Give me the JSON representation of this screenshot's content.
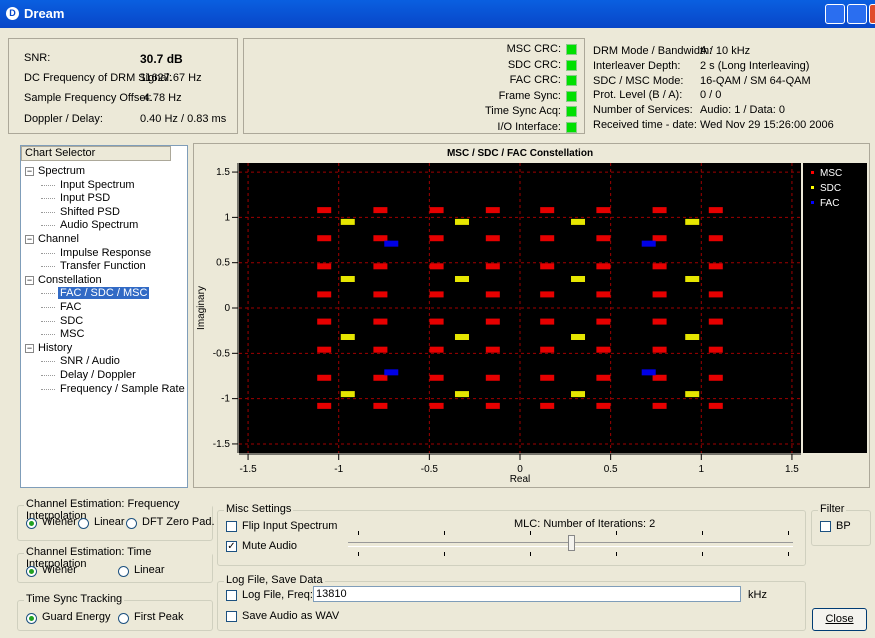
{
  "window": {
    "title": "Dream"
  },
  "status": {
    "rows": [
      {
        "label": "SNR:",
        "value": "30.7 dB"
      },
      {
        "label": "DC Frequency of DRM Signal:",
        "value": "11627.67 Hz"
      },
      {
        "label": "Sample Frequency Offset:",
        "value": "-4.78 Hz"
      },
      {
        "label": "Doppler / Delay:",
        "value": "0.40 Hz / 0.83 ms"
      }
    ],
    "indicators": [
      "MSC CRC:",
      "SDC CRC:",
      "FAC CRC:",
      "Frame Sync:",
      "Time Sync Acq:",
      "I/O Interface:"
    ],
    "info": [
      {
        "label": "DRM Mode / Bandwidth:",
        "value": "A / 10 kHz"
      },
      {
        "label": "Interleaver Depth:",
        "value": "2 s (Long Interleaving)"
      },
      {
        "label": "SDC / MSC Mode:",
        "value": "16-QAM / SM 64-QAM"
      },
      {
        "label": "Prot. Level (B / A):",
        "value": "0 / 0"
      },
      {
        "label": "Number of Services:",
        "value": "Audio: 1 / Data: 0"
      },
      {
        "label": "Received time - date:",
        "value": "Wed Nov 29 15:26:00 2006"
      }
    ]
  },
  "chart_selector": {
    "header": "Chart Selector",
    "groups": [
      {
        "label": "Spectrum",
        "items": [
          "Input Spectrum",
          "Input PSD",
          "Shifted PSD",
          "Audio Spectrum"
        ]
      },
      {
        "label": "Channel",
        "items": [
          "Impulse Response",
          "Transfer Function"
        ]
      },
      {
        "label": "Constellation",
        "items": [
          "FAC / SDC / MSC",
          "FAC",
          "SDC",
          "MSC"
        ]
      },
      {
        "label": "History",
        "items": [
          "SNR / Audio",
          "Delay / Doppler",
          "Frequency / Sample Rate"
        ]
      }
    ],
    "selected": [
      2,
      0
    ]
  },
  "chart_data": {
    "type": "scatter",
    "title": "MSC / SDC / FAC Constellation",
    "x_label": "Real",
    "y_label": "Imaginary",
    "xlim": [
      -1.55,
      1.55
    ],
    "ylim": [
      -1.6,
      1.6
    ],
    "xticks": [
      -1.5,
      -1,
      -0.5,
      0,
      0.5,
      1,
      1.5
    ],
    "yticks": [
      1.5,
      1,
      0.5,
      0,
      -0.5,
      -1,
      -1.5
    ],
    "grid": true,
    "series": [
      {
        "name": "MSC",
        "color": "#ff0000",
        "x": [
          -1.08,
          -0.77,
          -0.46,
          -0.15,
          0.15,
          0.46,
          0.77,
          1.08,
          -1.08,
          -0.77,
          -0.46,
          -0.15,
          0.15,
          0.46,
          0.77,
          1.08,
          -1.08,
          -0.77,
          -0.46,
          -0.15,
          0.15,
          0.46,
          0.77,
          1.08,
          -1.08,
          -0.77,
          -0.46,
          -0.15,
          0.15,
          0.46,
          0.77,
          1.08,
          -1.08,
          -0.77,
          -0.46,
          -0.15,
          0.15,
          0.46,
          0.77,
          1.08,
          -1.08,
          -0.77,
          -0.46,
          -0.15,
          0.15,
          0.46,
          0.77,
          1.08,
          -1.08,
          -0.77,
          -0.46,
          -0.15,
          0.15,
          0.46,
          0.77,
          1.08,
          -1.08,
          -0.77,
          -0.46,
          -0.15,
          0.15,
          0.46,
          0.77,
          1.08
        ],
        "y": [
          1.08,
          1.08,
          1.08,
          1.08,
          1.08,
          1.08,
          1.08,
          1.08,
          0.77,
          0.77,
          0.77,
          0.77,
          0.77,
          0.77,
          0.77,
          0.77,
          0.46,
          0.46,
          0.46,
          0.46,
          0.46,
          0.46,
          0.46,
          0.46,
          0.15,
          0.15,
          0.15,
          0.15,
          0.15,
          0.15,
          0.15,
          0.15,
          -0.15,
          -0.15,
          -0.15,
          -0.15,
          -0.15,
          -0.15,
          -0.15,
          -0.15,
          -0.46,
          -0.46,
          -0.46,
          -0.46,
          -0.46,
          -0.46,
          -0.46,
          -0.46,
          -0.77,
          -0.77,
          -0.77,
          -0.77,
          -0.77,
          -0.77,
          -0.77,
          -0.77,
          -1.08,
          -1.08,
          -1.08,
          -1.08,
          -1.08,
          -1.08,
          -1.08,
          -1.08
        ]
      },
      {
        "name": "SDC",
        "color": "#ffff00",
        "x": [
          -0.95,
          -0.32,
          0.32,
          0.95,
          -0.95,
          -0.32,
          0.32,
          0.95,
          -0.95,
          -0.32,
          0.32,
          0.95,
          -0.95,
          -0.32,
          0.32,
          0.95
        ],
        "y": [
          0.95,
          0.95,
          0.95,
          0.95,
          0.32,
          0.32,
          0.32,
          0.32,
          -0.32,
          -0.32,
          -0.32,
          -0.32,
          -0.95,
          -0.95,
          -0.95,
          -0.95
        ]
      },
      {
        "name": "FAC",
        "color": "#0000ff",
        "x": [
          -0.71,
          0.71,
          -0.71,
          0.71
        ],
        "y": [
          0.71,
          0.71,
          -0.71,
          -0.71
        ]
      }
    ]
  },
  "controls": {
    "freq_interp": {
      "title": "Channel Estimation: Frequency Interpolation",
      "options": [
        "Wiener",
        "Linear",
        "DFT Zero Pad."
      ],
      "selected": 0
    },
    "time_interp": {
      "title": "Channel Estimation: Time Interpolation",
      "options": [
        "Wiener",
        "Linear"
      ],
      "selected": 0
    },
    "time_sync": {
      "title": "Time Sync Tracking",
      "options": [
        "Guard Energy",
        "First Peak"
      ],
      "selected": 0
    },
    "misc": {
      "title": "Misc Settings",
      "flip": {
        "label": "Flip Input Spectrum",
        "checked": false
      },
      "mute": {
        "label": "Mute Audio",
        "checked": true
      },
      "mlc_label": "MLC: Number of Iterations: 2"
    },
    "log": {
      "title": "Log File, Save Data",
      "logfile": {
        "label": "Log File, Freq:",
        "checked": false
      },
      "freq": "13810",
      "unit": "kHz",
      "wav": {
        "label": "Save Audio as WAV",
        "checked": false
      }
    },
    "filter": {
      "title": "Filter",
      "bp": {
        "label": "BP",
        "checked": false
      }
    },
    "close": "Close"
  }
}
